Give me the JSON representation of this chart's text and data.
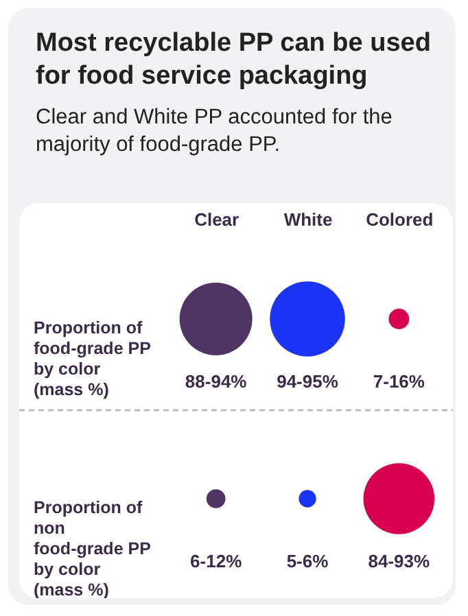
{
  "chart_data": {
    "type": "other",
    "title": "Most recyclable PP can be used for food service packaging",
    "subtitle": "Clear and White PP accounted for the majority of food-grade PP.",
    "categories": [
      "Clear",
      "White",
      "Colored"
    ],
    "colors": [
      "#4f3563",
      "#1c34f5",
      "#d6004f"
    ],
    "series": [
      {
        "name": "Proportion of food-grade PP by color (mass %)",
        "values": [
          88,
          94,
          7
        ],
        "value_labels": [
          "88-94%",
          "94-95%",
          "7-16%"
        ]
      },
      {
        "name": "Proportion of non food-grade PP by color (mass %)",
        "values": [
          6,
          5,
          84
        ],
        "value_labels": [
          "6-12%",
          "5-6%",
          "84-93%"
        ]
      }
    ]
  }
}
